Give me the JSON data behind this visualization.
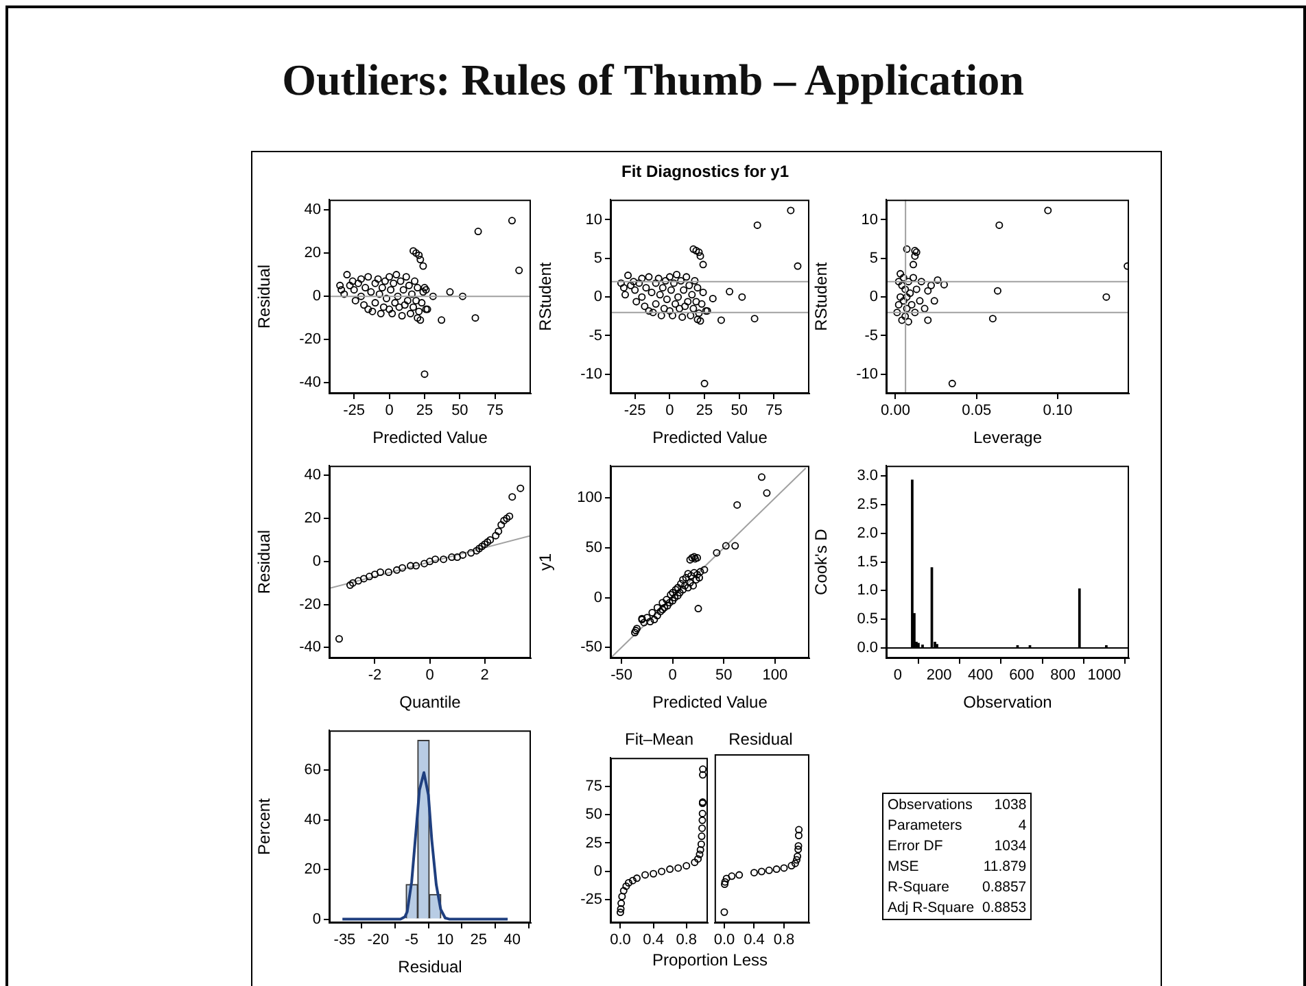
{
  "chart_data": [
    {
      "type": "other",
      "title": "Outliers: Rules of Thumb – Application",
      "subtitle": "Fit Diagnostics for y1"
    },
    {
      "type": "scatter",
      "xlabel": "Predicted Value",
      "ylabel": "Residual",
      "xlim": [
        -42.6,
        100.4
      ],
      "xticks": [
        -25,
        0,
        25,
        50,
        75
      ],
      "ylim": [
        -45,
        44.7
      ],
      "yticks": [
        -40,
        -20,
        0,
        20,
        40
      ],
      "marker": "circle",
      "ref_lines": [
        {
          "axis": "y",
          "value": 0,
          "color": "#a0a0a0"
        }
      ],
      "series": [
        {
          "color": "#000000",
          "x": [
            -28,
            -26,
            -25,
            -24,
            -22,
            -20,
            -20,
            -18,
            -17,
            -15,
            -15,
            -13,
            -12,
            -10,
            -10,
            -8,
            -7,
            -6,
            -5,
            -4,
            -3,
            -2,
            0,
            0,
            1,
            2,
            3,
            4,
            5,
            6,
            7,
            8,
            9,
            10,
            11,
            12,
            13,
            14,
            15,
            16,
            17,
            18,
            19,
            20,
            21,
            23,
            24,
            26,
            -35,
            -34,
            -32,
            -30,
            17,
            19,
            21,
            22,
            24,
            25,
            26,
            20,
            22,
            27,
            31,
            37,
            43,
            52,
            61,
            63,
            87,
            92,
            25
          ],
          "values": [
            5,
            7,
            3,
            -2,
            6,
            8,
            0,
            -4,
            4,
            9,
            -6,
            2,
            -7,
            6,
            -3,
            8,
            1,
            -8,
            4,
            -5,
            7,
            -1,
            9,
            -6,
            3,
            -8,
            6,
            -3,
            10,
            0,
            -5,
            7,
            -9,
            3,
            -4,
            9,
            -2,
            5,
            -8,
            1,
            -5,
            7,
            -2,
            4,
            -7,
            -3,
            2,
            -6,
            5,
            3,
            1,
            10,
            21,
            20,
            19,
            17,
            14,
            4,
            3,
            -10,
            -11,
            -6,
            0,
            -11,
            2,
            0,
            -10,
            30,
            35,
            12,
            -36
          ]
        }
      ]
    },
    {
      "type": "scatter",
      "xlabel": "Predicted Value",
      "ylabel": "RStudent",
      "xlim": [
        -42.6,
        100.4
      ],
      "xticks": [
        -25,
        0,
        25,
        50,
        75
      ],
      "ylim": [
        -12.5,
        12.6
      ],
      "yticks": [
        -10,
        -5,
        0,
        5,
        10
      ],
      "marker": "circle",
      "ref_lines": [
        {
          "axis": "y",
          "value": 2,
          "color": "#a0a0a0"
        },
        {
          "axis": "y",
          "value": -2,
          "color": "#a0a0a0"
        }
      ],
      "series": [
        {
          "color": "#000000",
          "x": [
            -28,
            -26,
            -25,
            -24,
            -22,
            -20,
            -20,
            -18,
            -17,
            -15,
            -15,
            -13,
            -12,
            -10,
            -10,
            -8,
            -7,
            -6,
            -5,
            -4,
            -3,
            -2,
            0,
            0,
            1,
            2,
            3,
            4,
            5,
            6,
            7,
            8,
            9,
            10,
            11,
            12,
            13,
            14,
            15,
            16,
            17,
            18,
            19,
            20,
            21,
            23,
            24,
            26,
            -35,
            -33,
            -32,
            -30,
            17,
            19,
            21,
            22,
            24,
            20,
            22,
            27,
            31,
            37,
            43,
            52,
            61,
            63,
            87,
            92,
            25
          ],
          "values": [
            1.5,
            2,
            0.9,
            -0.6,
            1.8,
            2.4,
            0,
            -1.2,
            1.2,
            2.6,
            -1.8,
            0.6,
            -2,
            1.8,
            -0.9,
            2.4,
            0.3,
            -2.4,
            1.2,
            -1.5,
            2.1,
            -0.3,
            2.6,
            -1.8,
            0.9,
            -2.4,
            1.8,
            -0.9,
            2.9,
            0,
            -1.5,
            2.1,
            -2.6,
            0.9,
            -1.2,
            2.6,
            -0.6,
            1.5,
            -2.4,
            0.3,
            -1.5,
            2.1,
            -0.6,
            1.2,
            -2.1,
            -0.9,
            0.6,
            -1.8,
            1.8,
            1.2,
            0.3,
            2.8,
            6.2,
            6,
            5.8,
            5.3,
            4.2,
            -2.9,
            -3.1,
            -1.8,
            -0.2,
            -3,
            0.7,
            0,
            -2.8,
            9.3,
            11.2,
            4,
            -11.2
          ]
        }
      ]
    },
    {
      "type": "scatter",
      "xlabel": "Leverage",
      "ylabel": "RStudent",
      "xlim": [
        -0.0057,
        0.144
      ],
      "xticks": [
        {
          "value": 0,
          "label": "0.00"
        },
        {
          "value": 0.05,
          "label": "0.05"
        },
        {
          "value": 0.1,
          "label": "0.10"
        }
      ],
      "ylim": [
        -12.5,
        12.6
      ],
      "yticks": [
        -10,
        -5,
        0,
        5,
        10
      ],
      "marker": "circle",
      "ref_lines": [
        {
          "axis": "y",
          "value": 2,
          "color": "#a0a0a0"
        },
        {
          "axis": "y",
          "value": -2,
          "color": "#a0a0a0"
        },
        {
          "axis": "x",
          "value": 0.0062,
          "color": "#a0a0a0"
        }
      ],
      "series": [
        {
          "color": "#000000",
          "x": [
            0.001,
            0.002,
            0.002,
            0.003,
            0.003,
            0.004,
            0.004,
            0.005,
            0.005,
            0.006,
            0.006,
            0.007,
            0.007,
            0.008,
            0.008,
            0.009,
            0.01,
            0.011,
            0.012,
            0.013,
            0.015,
            0.016,
            0.018,
            0.02,
            0.022,
            0.024,
            0.026,
            0.02,
            0.03,
            0.007,
            0.012,
            0.013,
            0.012,
            0.011,
            0.035,
            0.06,
            0.063,
            0.064,
            0.094,
            0.13,
            0.143
          ],
          "values": [
            -2,
            2,
            -1,
            3,
            0,
            -3,
            1.5,
            -0.5,
            2.5,
            -2.5,
            1,
            0,
            -1.5,
            2,
            -3.2,
            0.5,
            -1,
            2.5,
            -2,
            1,
            -0.5,
            2,
            -1.5,
            0.8,
            1.5,
            -0.5,
            2.2,
            -3,
            1.6,
            6.2,
            6,
            5.8,
            5.3,
            4.2,
            -11.2,
            -2.8,
            0.8,
            9.3,
            11.2,
            0,
            4
          ]
        }
      ]
    },
    {
      "type": "scatter",
      "xlabel": "Quantile",
      "ylabel": "Residual",
      "xlim": [
        -3.66,
        3.68
      ],
      "xticks": [
        -2,
        0,
        2
      ],
      "ylim": [
        -45,
        44.5
      ],
      "yticks": [
        -40,
        -20,
        0,
        20,
        40
      ],
      "marker": "circle",
      "series": [
        {
          "color": "#000000",
          "x": [
            -3.3,
            -2.9,
            -2.8,
            -2.6,
            -2.4,
            -2.2,
            -2,
            -1.8,
            -1.5,
            -1.2,
            -1,
            -0.7,
            -0.5,
            -0.2,
            0,
            0.2,
            0.5,
            0.8,
            1,
            1.2,
            1.5,
            1.7,
            1.8,
            1.9,
            2,
            2.1,
            2.2,
            2.4,
            2.5,
            2.6,
            2.7,
            2.8,
            2.9,
            3,
            3.3
          ],
          "values": [
            -36,
            -11,
            -10,
            -9,
            -8,
            -7,
            -6,
            -5,
            -5,
            -4,
            -3,
            -2,
            -2,
            -1,
            0,
            1,
            1,
            2,
            2,
            3,
            4,
            5,
            6,
            7,
            8,
            9,
            10,
            12,
            14,
            17,
            19,
            20,
            21,
            30,
            34
          ]
        },
        {
          "type": "line",
          "marker": "none",
          "color": "#a0a0a0",
          "x": [
            -3.66,
            3.68
          ],
          "values": [
            -12.5,
            12
          ]
        }
      ]
    },
    {
      "type": "scatter",
      "xlabel": "Predicted Value",
      "ylabel": "y1",
      "xlim": [
        -60.8,
        133.6
      ],
      "xticks": [
        -50,
        0,
        50,
        100
      ],
      "ylim": [
        -60.8,
        132.4
      ],
      "yticks": [
        -50,
        0,
        50,
        100
      ],
      "marker": "circle",
      "series": [
        {
          "color": "#000000",
          "x": [
            -30,
            -28,
            -25,
            -22,
            -20,
            -18,
            -15,
            -15,
            -12,
            -10,
            -10,
            -8,
            -6,
            -5,
            -3,
            -2,
            0,
            0,
            2,
            3,
            5,
            5,
            7,
            8,
            10,
            10,
            12,
            13,
            15,
            15,
            17,
            18,
            20,
            21,
            23,
            24,
            26,
            87,
            92,
            63,
            61,
            52,
            43,
            31,
            27,
            25,
            17,
            19,
            21,
            22,
            24,
            -37,
            -36,
            -35,
            -30
          ],
          "values": [
            -22,
            -25,
            -20,
            -24,
            -15,
            -22,
            -10,
            -18,
            -14,
            -5,
            -12,
            -10,
            -2,
            -8,
            -5,
            3,
            -3,
            5,
            0,
            8,
            2,
            10,
            5,
            14,
            8,
            18,
            12,
            20,
            10,
            24,
            15,
            22,
            12,
            25,
            18,
            23,
            20,
            121,
            105,
            93,
            52,
            52,
            45,
            28,
            26,
            -11,
            38,
            40,
            41,
            39,
            40,
            -35,
            -33,
            -31,
            -21
          ]
        },
        {
          "type": "line",
          "marker": "none",
          "color": "#a0a0a0",
          "x": [
            -60,
            130
          ],
          "values": [
            -60,
            130
          ]
        }
      ]
    },
    {
      "type": "bar",
      "xlabel": "Observation",
      "ylabel": "Cook's D",
      "xlim": [
        -56,
        1120
      ],
      "xticks": [
        0,
        200,
        400,
        600,
        800,
        1000
      ],
      "ylim": [
        -0.18,
        3.18
      ],
      "yticks": [
        {
          "value": 0,
          "label": "0.0"
        },
        {
          "value": 0.5,
          "label": "0.5"
        },
        {
          "value": 1,
          "label": "1.0"
        },
        {
          "value": 1.5,
          "label": "1.5"
        },
        {
          "value": 2,
          "label": "2.0"
        },
        {
          "value": 2.5,
          "label": "2.5"
        },
        {
          "value": 3,
          "label": "3.0"
        }
      ],
      "ref_lines": [
        {
          "axis": "y",
          "value": 0,
          "color": "#000000"
        }
      ],
      "color": "#000000",
      "x": [
        70,
        80,
        90,
        100,
        120,
        165,
        180,
        190,
        580,
        640,
        880,
        1010
      ],
      "values": [
        2.93,
        0.6,
        0.1,
        0.08,
        0.05,
        1.4,
        0.1,
        0.06,
        0.04,
        0.04,
        1.03,
        0.04
      ]
    },
    {
      "type": "histogram",
      "xlabel": "Residual",
      "ylabel": "Percent",
      "xlim": [
        -41.9,
        48.4
      ],
      "xticks": [
        -35,
        -20,
        -5,
        10,
        25,
        40
      ],
      "ylim": [
        -1.5,
        76
      ],
      "yticks": [
        0,
        20,
        40,
        60
      ],
      "bins": [
        -7.5,
        -2.3,
        2.9,
        8.1
      ],
      "values": [
        14,
        72,
        10
      ],
      "color": "#b8cce4",
      "series": [
        {
          "type": "line",
          "color": "#1f3f7f",
          "x": [
            -36,
            -10,
            -8,
            -7,
            -5,
            -3,
            -1.5,
            0.5,
            2.5,
            4,
            6,
            8,
            10,
            12,
            38
          ],
          "values": [
            0,
            0,
            1,
            3,
            15,
            36,
            52,
            59,
            50,
            32,
            14,
            4,
            0.5,
            0,
            0
          ]
        }
      ]
    },
    {
      "type": "scatter",
      "title": "Fit–Mean",
      "xlabel": "Proportion Less",
      "xlim": [
        -0.12,
        1.06
      ],
      "xticks": [
        {
          "value": 0,
          "label": "0.0"
        },
        {
          "value": 0.4,
          "label": "0.4"
        },
        {
          "value": 0.8,
          "label": "0.8"
        }
      ],
      "ylim": [
        -45.3,
        100
      ],
      "yticks": [
        -25,
        0,
        25,
        50,
        75
      ],
      "marker": "circle",
      "series": [
        {
          "color": "#000000",
          "x": [
            0,
            0.005,
            0.01,
            0.02,
            0.04,
            0.07,
            0.1,
            0.15,
            0.2,
            0.3,
            0.4,
            0.5,
            0.6,
            0.7,
            0.8,
            0.9,
            0.94,
            0.96,
            0.97,
            0.98,
            0.985,
            0.99,
            0.993,
            0.995,
            0.996,
            0.997,
            0.998,
            0.999
          ],
          "values": [
            -36,
            -33,
            -28,
            -22,
            -17,
            -13,
            -10,
            -8,
            -6,
            -3,
            -2,
            0,
            2,
            3,
            5,
            8,
            11,
            15,
            19,
            24,
            31,
            38,
            45,
            51,
            60,
            61,
            85,
            90
          ]
        }
      ]
    },
    {
      "type": "scatter",
      "title": "Residual",
      "tick_labels": "x",
      "xlim": [
        -0.13,
        1.14
      ],
      "xticks": [
        {
          "value": 0,
          "label": "0.0"
        },
        {
          "value": 0.4,
          "label": "0.4"
        },
        {
          "value": 0.8,
          "label": "0.8"
        }
      ],
      "ylim": [
        -45.3,
        100
      ],
      "yticks": [
        -25,
        0,
        25,
        50,
        75
      ],
      "marker": "circle",
      "series": [
        {
          "color": "#000000",
          "x": [
            0,
            0.005,
            0.01,
            0.03,
            0.1,
            0.2,
            0.4,
            0.5,
            0.6,
            0.7,
            0.8,
            0.9,
            0.95,
            0.97,
            0.98,
            0.99,
            0.993,
            0.997,
            0.999
          ],
          "values": [
            -36,
            -12,
            -10,
            -7,
            -5,
            -4,
            -2,
            -1,
            0,
            1,
            2,
            4,
            6,
            9,
            12,
            18,
            21,
            30,
            35
          ]
        }
      ]
    },
    {
      "type": "other",
      "annotations": [
        "Observations",
        "1038",
        "Parameters",
        "4",
        "Error DF",
        "1034",
        "MSE",
        "11.879",
        "R-Square",
        "0.8857",
        "Adj R-Square",
        "0.8853"
      ]
    }
  ]
}
